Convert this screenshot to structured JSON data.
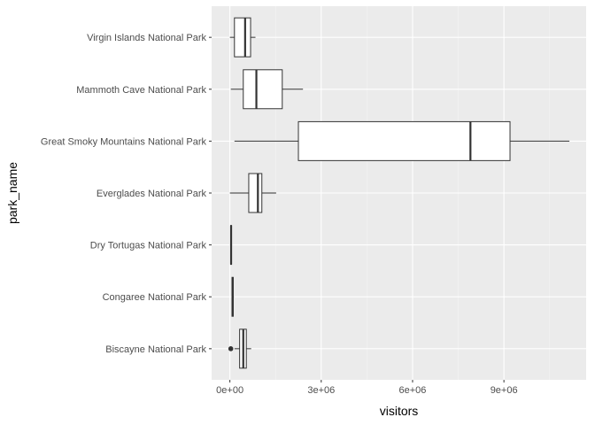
{
  "chart_data": {
    "type": "boxplot",
    "orientation": "horizontal",
    "xlabel": "visitors",
    "ylabel": "park_name",
    "xlim": [
      -600000,
      11700000
    ],
    "x_ticks": [
      0,
      3000000,
      6000000,
      9000000
    ],
    "x_tick_labels": [
      "0e+00",
      "3e+06",
      "6e+06",
      "9e+06"
    ],
    "grid": true,
    "legend": "none",
    "colors": {
      "panel_bg": "#ebebeb",
      "grid_major": "#ffffff",
      "grid_minor": "#f5f5f5",
      "box_fill": "#ffffff",
      "box_line": "#333333"
    },
    "series": [
      {
        "category": "Biscayne National Park",
        "whisker_low": 150000,
        "q1": 320000,
        "median": 440000,
        "q3": 540000,
        "whisker_high": 700000,
        "outliers": [
          30000
        ]
      },
      {
        "category": "Congaree National Park",
        "whisker_low": 60000,
        "q1": 70000,
        "median": 90000,
        "q3": 110000,
        "whisker_high": 130000,
        "outliers": []
      },
      {
        "category": "Dry Tortugas National Park",
        "whisker_low": 20000,
        "q1": 25000,
        "median": 40000,
        "q3": 55000,
        "whisker_high": 70000,
        "outliers": []
      },
      {
        "category": "Everglades National Park",
        "whisker_low": 0,
        "q1": 620000,
        "median": 920000,
        "q3": 1050000,
        "whisker_high": 1520000,
        "outliers": []
      },
      {
        "category": "Great Smoky Mountains National Park",
        "whisker_low": 150000,
        "q1": 2250000,
        "median": 7900000,
        "q3": 9200000,
        "whisker_high": 11150000,
        "outliers": []
      },
      {
        "category": "Mammoth Cave National Park",
        "whisker_low": 30000,
        "q1": 440000,
        "median": 870000,
        "q3": 1720000,
        "whisker_high": 2400000,
        "outliers": []
      },
      {
        "category": "Virgin Islands National Park",
        "whisker_low": 0,
        "q1": 150000,
        "median": 500000,
        "q3": 680000,
        "whisker_high": 840000,
        "outliers": []
      }
    ]
  }
}
